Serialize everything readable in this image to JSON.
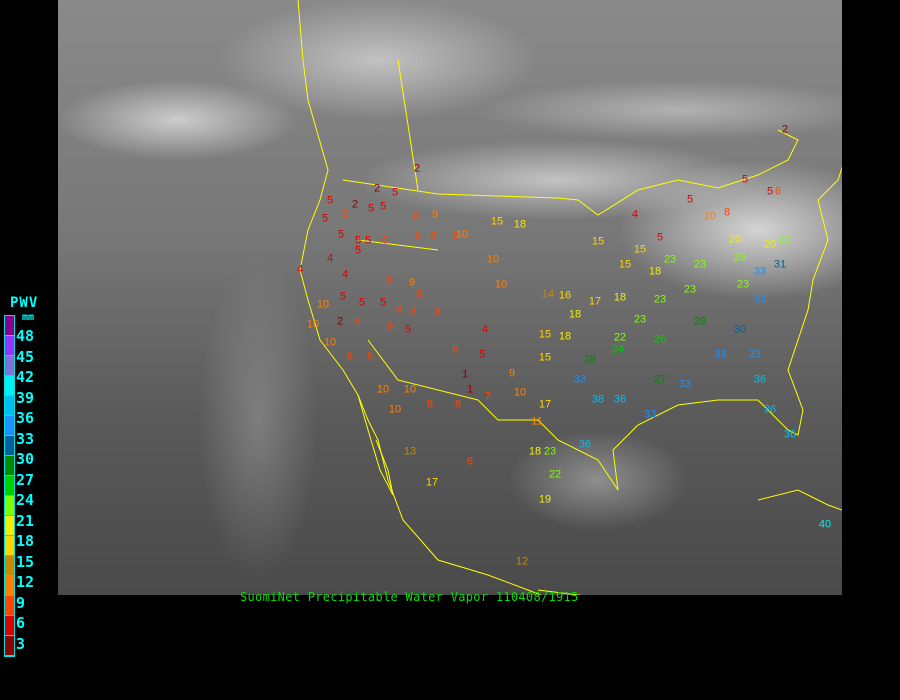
{
  "caption": "SuomiNet Precipitable Water Vapor 110408/1915",
  "legend": {
    "title": "PWV",
    "unit": "mm",
    "ticks": [
      "48",
      "45",
      "42",
      "39",
      "36",
      "33",
      "30",
      "27",
      "24",
      "21",
      "18",
      "15",
      "12",
      "9",
      "6",
      "3"
    ],
    "colors": [
      "#8b008b",
      "#9933ff",
      "#8070d8",
      "#00f0f0",
      "#00bff0",
      "#1e90ff",
      "#005f9f",
      "#008a00",
      "#00d000",
      "#80ff00",
      "#f0f000",
      "#ffd700",
      "#c88a00",
      "#ff8000",
      "#ff4500",
      "#dd0000",
      "#8b0000"
    ]
  },
  "border_color": "#ffff00",
  "stations": [
    2,
    2,
    2,
    5,
    5,
    5,
    5,
    6,
    5,
    6,
    9,
    6,
    8,
    8,
    10,
    6,
    5,
    5,
    5,
    5,
    4,
    4,
    4,
    5,
    5,
    5,
    6,
    9,
    8,
    8,
    8,
    8,
    6,
    5,
    10,
    10,
    2,
    6,
    10,
    6,
    6,
    10,
    10,
    10,
    8,
    8,
    7,
    1,
    1,
    5,
    6,
    4,
    15,
    18,
    10,
    10,
    14,
    16,
    17,
    18,
    18,
    15,
    18,
    15,
    9,
    10,
    17,
    11,
    18,
    23,
    22,
    19,
    17,
    13,
    6,
    12,
    15,
    18,
    15,
    15,
    5,
    4,
    5,
    10,
    8,
    5,
    5,
    2,
    6,
    23,
    23,
    23,
    23,
    20,
    20,
    23,
    23,
    23,
    22,
    24,
    26,
    28,
    30,
    33,
    33,
    33,
    33,
    36,
    36,
    33,
    33,
    36,
    36,
    36,
    40,
    38,
    28,
    27,
    33,
    31,
    22
  ]
}
